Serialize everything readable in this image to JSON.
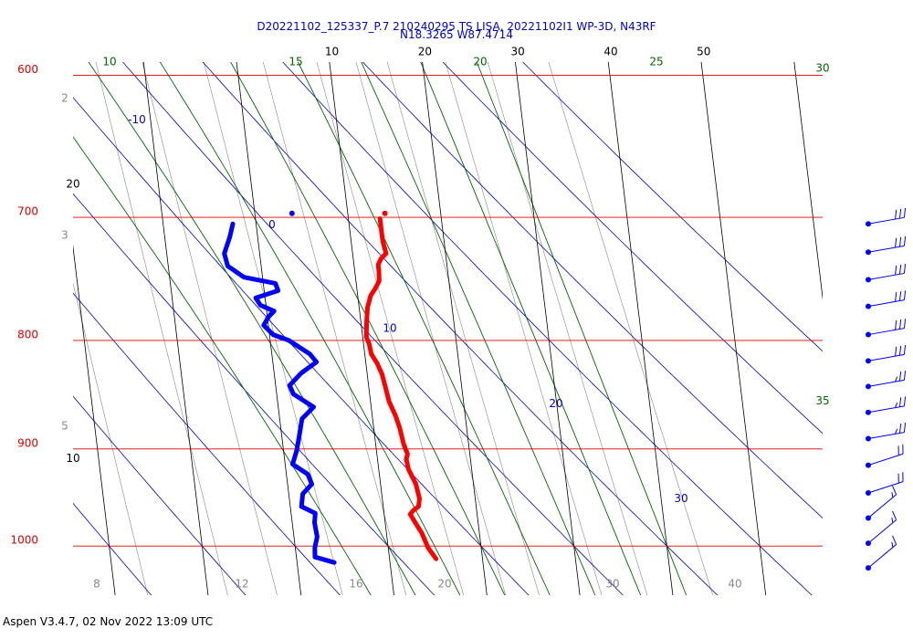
{
  "header": {
    "title_line1": "D20221102_125337_P.7 210240295 TS LISA, 20221102I1 WP-3D, N43RF",
    "title_line2": "N18.3265 W87.4714"
  },
  "footer": {
    "text": "Aspen V3.4.7, 02 Nov 2022  13:09 UTC"
  },
  "colors": {
    "isobar": "#dd0000",
    "isotherm": "#000000",
    "dry_adiabat": "#0000cc",
    "moist_adiabat": "#006600",
    "mixing_ratio": "#888888",
    "temperature": "#ff0000",
    "dewpoint": "#0000ff"
  },
  "chart_data": {
    "type": "skew-t",
    "pressure_axis": {
      "ylim": [
        600,
        1050
      ],
      "scale": "log",
      "ticks": [
        600,
        700,
        800,
        900,
        1000
      ]
    },
    "isotherm_labels": [
      50,
      40,
      30,
      20,
      10
    ],
    "dry_adiabat_labels": [
      -10,
      0,
      10,
      20,
      30
    ],
    "moist_adiabat_labels": [
      10,
      15,
      20,
      25,
      30,
      35
    ],
    "mixing_ratio_labels": [
      "2",
      "3",
      "5",
      "8",
      "12",
      "16",
      "20",
      "30",
      "40"
    ],
    "series": [
      {
        "variable": "temperature",
        "points": [
          [
            701,
            13.4
          ],
          [
            708,
            13.4
          ],
          [
            718,
            13.4
          ],
          [
            728,
            13.6
          ],
          [
            732,
            13.0
          ],
          [
            737,
            12.6
          ],
          [
            742,
            12.6
          ],
          [
            750,
            12.5
          ],
          [
            756,
            12.0
          ],
          [
            762,
            11.4
          ],
          [
            772,
            10.9
          ],
          [
            785,
            10.6
          ],
          [
            797,
            10.4
          ],
          [
            803,
            10.6
          ],
          [
            812,
            10.7
          ],
          [
            820,
            11.2
          ],
          [
            830,
            11.6
          ],
          [
            842,
            11.8
          ],
          [
            855,
            12.0
          ],
          [
            868,
            12.5
          ],
          [
            880,
            12.8
          ],
          [
            895,
            13.0
          ],
          [
            905,
            13.3
          ],
          [
            910,
            13.1
          ],
          [
            920,
            13.2
          ],
          [
            935,
            13.8
          ],
          [
            950,
            14.0
          ],
          [
            958,
            13.8
          ],
          [
            962,
            13.2
          ],
          [
            966,
            12.8
          ],
          [
            976,
            13.3
          ],
          [
            986,
            13.8
          ],
          [
            1002,
            14.3
          ],
          [
            1014,
            15.0
          ]
        ]
      },
      {
        "variable": "dewpoint",
        "points": [
          [
            705,
            -2.5
          ],
          [
            715,
            -3.0
          ],
          [
            728,
            -3.8
          ],
          [
            738,
            -3.6
          ],
          [
            747,
            -2.0
          ],
          [
            752,
            1.3
          ],
          [
            758,
            1.5
          ],
          [
            764,
            -1.0
          ],
          [
            770,
            -0.6
          ],
          [
            775,
            0.8
          ],
          [
            780,
            0.1
          ],
          [
            787,
            -0.5
          ],
          [
            795,
            0.4
          ],
          [
            800,
            2.0
          ],
          [
            812,
            4.1
          ],
          [
            819,
            4.7
          ],
          [
            829,
            2.9
          ],
          [
            840,
            1.5
          ],
          [
            848,
            1.8
          ],
          [
            860,
            3.8
          ],
          [
            871,
            2.4
          ],
          [
            890,
            1.8
          ],
          [
            902,
            1.4
          ],
          [
            915,
            0.8
          ],
          [
            925,
            2.3
          ],
          [
            935,
            2.6
          ],
          [
            945,
            1.5
          ],
          [
            958,
            1.2
          ],
          [
            965,
            2.6
          ],
          [
            975,
            2.4
          ],
          [
            990,
            2.5
          ],
          [
            1002,
            2.1
          ],
          [
            1012,
            2.0
          ],
          [
            1018,
            4.0
          ]
        ]
      }
    ],
    "top_observation": {
      "pressure": 697,
      "temperature": 14.0,
      "dewpoint": 4.0
    },
    "wind_barbs": [
      {
        "pressure": 705,
        "speed_kt": 30
      },
      {
        "pressure": 727,
        "speed_kt": 30
      },
      {
        "pressure": 749,
        "speed_kt": 30
      },
      {
        "pressure": 771,
        "speed_kt": 30
      },
      {
        "pressure": 795,
        "speed_kt": 30
      },
      {
        "pressure": 818,
        "speed_kt": 30
      },
      {
        "pressure": 841,
        "speed_kt": 25
      },
      {
        "pressure": 865,
        "speed_kt": 25
      },
      {
        "pressure": 890,
        "speed_kt": 25
      },
      {
        "pressure": 916,
        "speed_kt": 20
      },
      {
        "pressure": 944,
        "speed_kt": 20
      },
      {
        "pressure": 970,
        "speed_kt": 15
      },
      {
        "pressure": 997,
        "speed_kt": 15
      },
      {
        "pressure": 1024,
        "speed_kt": 15
      }
    ]
  }
}
